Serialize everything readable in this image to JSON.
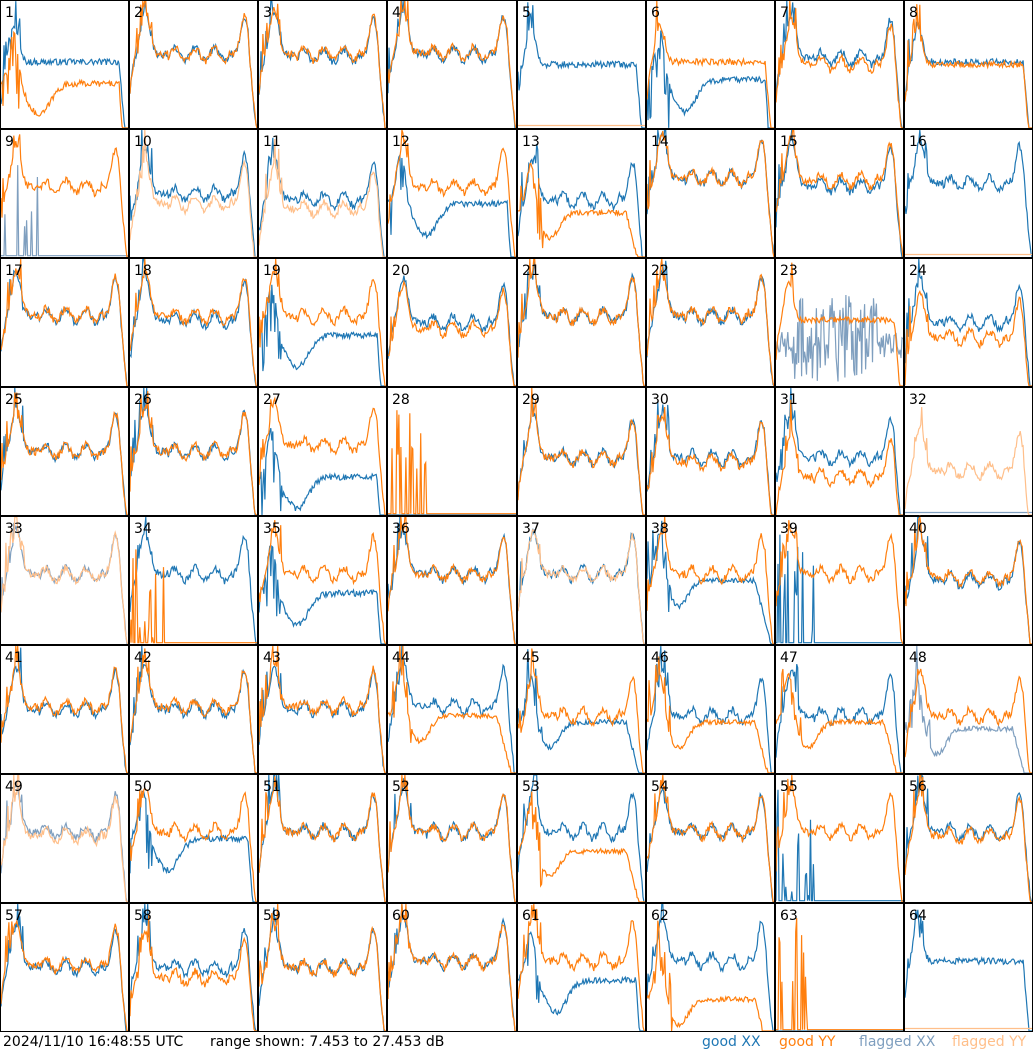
{
  "footer": {
    "timestamp": "2024/11/10 16:48:55 UTC",
    "range": "range shown: 7.453 to 27.453 dB"
  },
  "legend": [
    {
      "label": "good XX",
      "color": "#1f77b4"
    },
    {
      "label": "good YY",
      "color": "#ff7f0e"
    },
    {
      "label": "flagged XX",
      "color": "#7f9fbf"
    },
    {
      "label": "flagged YY",
      "color": "#ffbf8a"
    }
  ],
  "chart_data": {
    "type": "line",
    "grid": {
      "rows": 8,
      "cols": 8
    },
    "ylim": [
      7.453,
      27.453
    ],
    "yunit": "dB",
    "tiles": [
      {
        "id": "1",
        "xx": {
          "p": "flat",
          "lvl": 0.52,
          "f": false
        },
        "yy": {
          "p": "sag",
          "lvl": 0.35,
          "f": false
        }
      },
      {
        "id": "2",
        "xx": {
          "p": "bandpass",
          "lvl": 0.58,
          "f": false
        },
        "yy": {
          "p": "bandpass",
          "lvl": 0.58,
          "f": false
        }
      },
      {
        "id": "3",
        "xx": {
          "p": "bandpass",
          "lvl": 0.57,
          "f": false
        },
        "yy": {
          "p": "bandpass",
          "lvl": 0.58,
          "f": false
        }
      },
      {
        "id": "4",
        "xx": {
          "p": "bandpass",
          "lvl": 0.58,
          "f": false
        },
        "yy": {
          "p": "bandpass",
          "lvl": 0.59,
          "f": false
        }
      },
      {
        "id": "5",
        "xx": {
          "p": "flat",
          "lvl": 0.5,
          "f": false
        },
        "yy": {
          "p": "dead",
          "lvl": 0.02,
          "f": true
        }
      },
      {
        "id": "6",
        "xx": {
          "p": "sag",
          "lvl": 0.38,
          "f": false
        },
        "yy": {
          "p": "flat",
          "lvl": 0.52,
          "f": false
        }
      },
      {
        "id": "7",
        "xx": {
          "p": "bandpass",
          "lvl": 0.55,
          "f": false
        },
        "yy": {
          "p": "bandpass",
          "lvl": 0.5,
          "f": false
        }
      },
      {
        "id": "8",
        "xx": {
          "p": "flat",
          "lvl": 0.52,
          "f": false
        },
        "yy": {
          "p": "flat",
          "lvl": 0.5,
          "f": false
        }
      },
      {
        "id": "9",
        "xx": {
          "p": "spikes",
          "lvl": 0.05,
          "f": true
        },
        "yy": {
          "p": "bandpass",
          "lvl": 0.55,
          "f": false
        }
      },
      {
        "id": "10",
        "xx": {
          "p": "bandpass",
          "lvl": 0.5,
          "f": false
        },
        "yy": {
          "p": "bandpass",
          "lvl": 0.42,
          "f": true
        }
      },
      {
        "id": "11",
        "xx": {
          "p": "bandpass",
          "lvl": 0.45,
          "f": false
        },
        "yy": {
          "p": "bandpass",
          "lvl": 0.38,
          "f": true
        }
      },
      {
        "id": "12",
        "xx": {
          "p": "sag",
          "lvl": 0.42,
          "f": false
        },
        "yy": {
          "p": "bandpass",
          "lvl": 0.55,
          "f": false
        }
      },
      {
        "id": "13",
        "xx": {
          "p": "bandpass",
          "lvl": 0.45,
          "f": false
        },
        "yy": {
          "p": "droop",
          "lvl": 0.35,
          "f": false
        }
      },
      {
        "id": "14",
        "xx": {
          "p": "bandpass",
          "lvl": 0.62,
          "f": false
        },
        "yy": {
          "p": "bandpass",
          "lvl": 0.62,
          "f": false
        }
      },
      {
        "id": "15",
        "xx": {
          "p": "bandpass",
          "lvl": 0.56,
          "f": false
        },
        "yy": {
          "p": "bandpass",
          "lvl": 0.6,
          "f": false
        }
      },
      {
        "id": "16",
        "xx": {
          "p": "bandpass",
          "lvl": 0.58,
          "f": false
        },
        "yy": {
          "p": "dead",
          "lvl": 0.02,
          "f": true
        }
      },
      {
        "id": "17",
        "xx": {
          "p": "bandpass",
          "lvl": 0.55,
          "f": false
        },
        "yy": {
          "p": "bandpass",
          "lvl": 0.56,
          "f": false
        }
      },
      {
        "id": "18",
        "xx": {
          "p": "bandpass",
          "lvl": 0.52,
          "f": false
        },
        "yy": {
          "p": "bandpass",
          "lvl": 0.55,
          "f": false
        }
      },
      {
        "id": "19",
        "xx": {
          "p": "sag",
          "lvl": 0.4,
          "f": false
        },
        "yy": {
          "p": "bandpass",
          "lvl": 0.55,
          "f": false
        }
      },
      {
        "id": "20",
        "xx": {
          "p": "bandpass",
          "lvl": 0.5,
          "f": false
        },
        "yy": {
          "p": "bandpass",
          "lvl": 0.45,
          "f": false
        }
      },
      {
        "id": "21",
        "xx": {
          "p": "bandpass",
          "lvl": 0.55,
          "f": false
        },
        "yy": {
          "p": "bandpass",
          "lvl": 0.55,
          "f": false
        }
      },
      {
        "id": "22",
        "xx": {
          "p": "bandpass",
          "lvl": 0.55,
          "f": false
        },
        "yy": {
          "p": "bandpass",
          "lvl": 0.56,
          "f": false
        }
      },
      {
        "id": "23",
        "xx": {
          "p": "noise",
          "lvl": 0.3,
          "f": true
        },
        "yy": {
          "p": "flat",
          "lvl": 0.52,
          "f": false
        }
      },
      {
        "id": "24",
        "xx": {
          "p": "bandpass",
          "lvl": 0.5,
          "f": false
        },
        "yy": {
          "p": "bandpass",
          "lvl": 0.38,
          "f": false
        }
      },
      {
        "id": "25",
        "xx": {
          "p": "bandpass",
          "lvl": 0.5,
          "f": false
        },
        "yy": {
          "p": "bandpass",
          "lvl": 0.5,
          "f": false
        }
      },
      {
        "id": "26",
        "xx": {
          "p": "bandpass",
          "lvl": 0.5,
          "f": false
        },
        "yy": {
          "p": "bandpass",
          "lvl": 0.5,
          "f": false
        }
      },
      {
        "id": "27",
        "xx": {
          "p": "sag",
          "lvl": 0.3,
          "f": false
        },
        "yy": {
          "p": "bandpass",
          "lvl": 0.55,
          "f": false
        }
      },
      {
        "id": "28",
        "xx": {
          "p": "dead",
          "lvl": 0.0,
          "f": false
        },
        "yy": {
          "p": "spikes",
          "lvl": 0.0,
          "f": false
        }
      },
      {
        "id": "29",
        "xx": {
          "p": "bandpass",
          "lvl": 0.45,
          "f": false
        },
        "yy": {
          "p": "bandpass",
          "lvl": 0.45,
          "f": false
        }
      },
      {
        "id": "30",
        "xx": {
          "p": "bandpass",
          "lvl": 0.45,
          "f": false
        },
        "yy": {
          "p": "bandpass",
          "lvl": 0.42,
          "f": false
        }
      },
      {
        "id": "31",
        "xx": {
          "p": "bandpass",
          "lvl": 0.45,
          "f": false
        },
        "yy": {
          "p": "bandpass",
          "lvl": 0.3,
          "f": false
        }
      },
      {
        "id": "32",
        "xx": {
          "p": "dead",
          "lvl": 0.02,
          "f": true
        },
        "yy": {
          "p": "bandpass",
          "lvl": 0.35,
          "f": true
        }
      },
      {
        "id": "33",
        "xx": {
          "p": "bandpass",
          "lvl": 0.55,
          "f": true
        },
        "yy": {
          "p": "bandpass",
          "lvl": 0.55,
          "f": true
        }
      },
      {
        "id": "34",
        "xx": {
          "p": "bandpass",
          "lvl": 0.55,
          "f": false
        },
        "yy": {
          "p": "spikes",
          "lvl": 0.02,
          "f": false
        }
      },
      {
        "id": "35",
        "xx": {
          "p": "sag",
          "lvl": 0.4,
          "f": false
        },
        "yy": {
          "p": "bandpass",
          "lvl": 0.55,
          "f": false
        }
      },
      {
        "id": "36",
        "xx": {
          "p": "bandpass",
          "lvl": 0.55,
          "f": false
        },
        "yy": {
          "p": "bandpass",
          "lvl": 0.55,
          "f": false
        }
      },
      {
        "id": "37",
        "xx": {
          "p": "bandpass",
          "lvl": 0.55,
          "f": false
        },
        "yy": {
          "p": "bandpass",
          "lvl": 0.55,
          "f": true
        }
      },
      {
        "id": "38",
        "xx": {
          "p": "droop",
          "lvl": 0.5,
          "f": false
        },
        "yy": {
          "p": "bandpass",
          "lvl": 0.55,
          "f": false
        }
      },
      {
        "id": "39",
        "xx": {
          "p": "spikes",
          "lvl": 0.02,
          "f": false
        },
        "yy": {
          "p": "bandpass",
          "lvl": 0.55,
          "f": false
        }
      },
      {
        "id": "40",
        "xx": {
          "p": "bandpass",
          "lvl": 0.5,
          "f": false
        },
        "yy": {
          "p": "bandpass",
          "lvl": 0.52,
          "f": false
        }
      },
      {
        "id": "41",
        "xx": {
          "p": "bandpass",
          "lvl": 0.5,
          "f": false
        },
        "yy": {
          "p": "bandpass",
          "lvl": 0.52,
          "f": false
        }
      },
      {
        "id": "42",
        "xx": {
          "p": "bandpass",
          "lvl": 0.5,
          "f": false
        },
        "yy": {
          "p": "bandpass",
          "lvl": 0.52,
          "f": false
        }
      },
      {
        "id": "43",
        "xx": {
          "p": "bandpass",
          "lvl": 0.5,
          "f": false
        },
        "yy": {
          "p": "bandpass",
          "lvl": 0.52,
          "f": false
        }
      },
      {
        "id": "44",
        "xx": {
          "p": "bandpass",
          "lvl": 0.52,
          "f": false
        },
        "yy": {
          "p": "droop",
          "lvl": 0.45,
          "f": false
        }
      },
      {
        "id": "45",
        "xx": {
          "p": "droop",
          "lvl": 0.4,
          "f": false
        },
        "yy": {
          "p": "bandpass",
          "lvl": 0.45,
          "f": false
        }
      },
      {
        "id": "46",
        "xx": {
          "p": "bandpass",
          "lvl": 0.45,
          "f": false
        },
        "yy": {
          "p": "droop",
          "lvl": 0.4,
          "f": false
        }
      },
      {
        "id": "47",
        "xx": {
          "p": "bandpass",
          "lvl": 0.45,
          "f": false
        },
        "yy": {
          "p": "droop",
          "lvl": 0.4,
          "f": false
        }
      },
      {
        "id": "48",
        "xx": {
          "p": "droop",
          "lvl": 0.35,
          "f": true
        },
        "yy": {
          "p": "bandpass",
          "lvl": 0.45,
          "f": false
        }
      },
      {
        "id": "49",
        "xx": {
          "p": "bandpass",
          "lvl": 0.55,
          "f": true
        },
        "yy": {
          "p": "bandpass",
          "lvl": 0.52,
          "f": true
        }
      },
      {
        "id": "50",
        "xx": {
          "p": "sag",
          "lvl": 0.5,
          "f": false
        },
        "yy": {
          "p": "bandpass",
          "lvl": 0.55,
          "f": false
        }
      },
      {
        "id": "51",
        "xx": {
          "p": "bandpass",
          "lvl": 0.55,
          "f": false
        },
        "yy": {
          "p": "bandpass",
          "lvl": 0.55,
          "f": false
        }
      },
      {
        "id": "52",
        "xx": {
          "p": "bandpass",
          "lvl": 0.55,
          "f": false
        },
        "yy": {
          "p": "bandpass",
          "lvl": 0.55,
          "f": false
        }
      },
      {
        "id": "53",
        "xx": {
          "p": "bandpass",
          "lvl": 0.55,
          "f": false
        },
        "yy": {
          "p": "droop",
          "lvl": 0.4,
          "f": false
        }
      },
      {
        "id": "54",
        "xx": {
          "p": "bandpass",
          "lvl": 0.55,
          "f": false
        },
        "yy": {
          "p": "bandpass",
          "lvl": 0.55,
          "f": false
        }
      },
      {
        "id": "55",
        "xx": {
          "p": "spikes",
          "lvl": 0.02,
          "f": false
        },
        "yy": {
          "p": "bandpass",
          "lvl": 0.55,
          "f": false
        }
      },
      {
        "id": "56",
        "xx": {
          "p": "bandpass",
          "lvl": 0.55,
          "f": false
        },
        "yy": {
          "p": "bandpass",
          "lvl": 0.52,
          "f": false
        }
      },
      {
        "id": "57",
        "xx": {
          "p": "bandpass",
          "lvl": 0.5,
          "f": false
        },
        "yy": {
          "p": "bandpass",
          "lvl": 0.52,
          "f": false
        }
      },
      {
        "id": "58",
        "xx": {
          "p": "bandpass",
          "lvl": 0.5,
          "f": false
        },
        "yy": {
          "p": "bandpass",
          "lvl": 0.42,
          "f": false
        }
      },
      {
        "id": "59",
        "xx": {
          "p": "bandpass",
          "lvl": 0.5,
          "f": false
        },
        "yy": {
          "p": "bandpass",
          "lvl": 0.5,
          "f": false
        }
      },
      {
        "id": "60",
        "xx": {
          "p": "bandpass",
          "lvl": 0.55,
          "f": false
        },
        "yy": {
          "p": "bandpass",
          "lvl": 0.55,
          "f": false
        }
      },
      {
        "id": "61",
        "xx": {
          "p": "sag",
          "lvl": 0.4,
          "f": false
        },
        "yy": {
          "p": "bandpass",
          "lvl": 0.55,
          "f": false
        }
      },
      {
        "id": "62",
        "xx": {
          "p": "bandpass",
          "lvl": 0.55,
          "f": false
        },
        "yy": {
          "p": "droop",
          "lvl": 0.25,
          "f": false
        }
      },
      {
        "id": "63",
        "xx": {
          "p": "dead",
          "lvl": 0.0,
          "f": false
        },
        "yy": {
          "p": "spikes",
          "lvl": 0.0,
          "f": false
        }
      },
      {
        "id": "64",
        "xx": {
          "p": "flat",
          "lvl": 0.55,
          "f": false
        },
        "yy": {
          "p": "dead",
          "lvl": 0.02,
          "f": true
        }
      }
    ]
  }
}
